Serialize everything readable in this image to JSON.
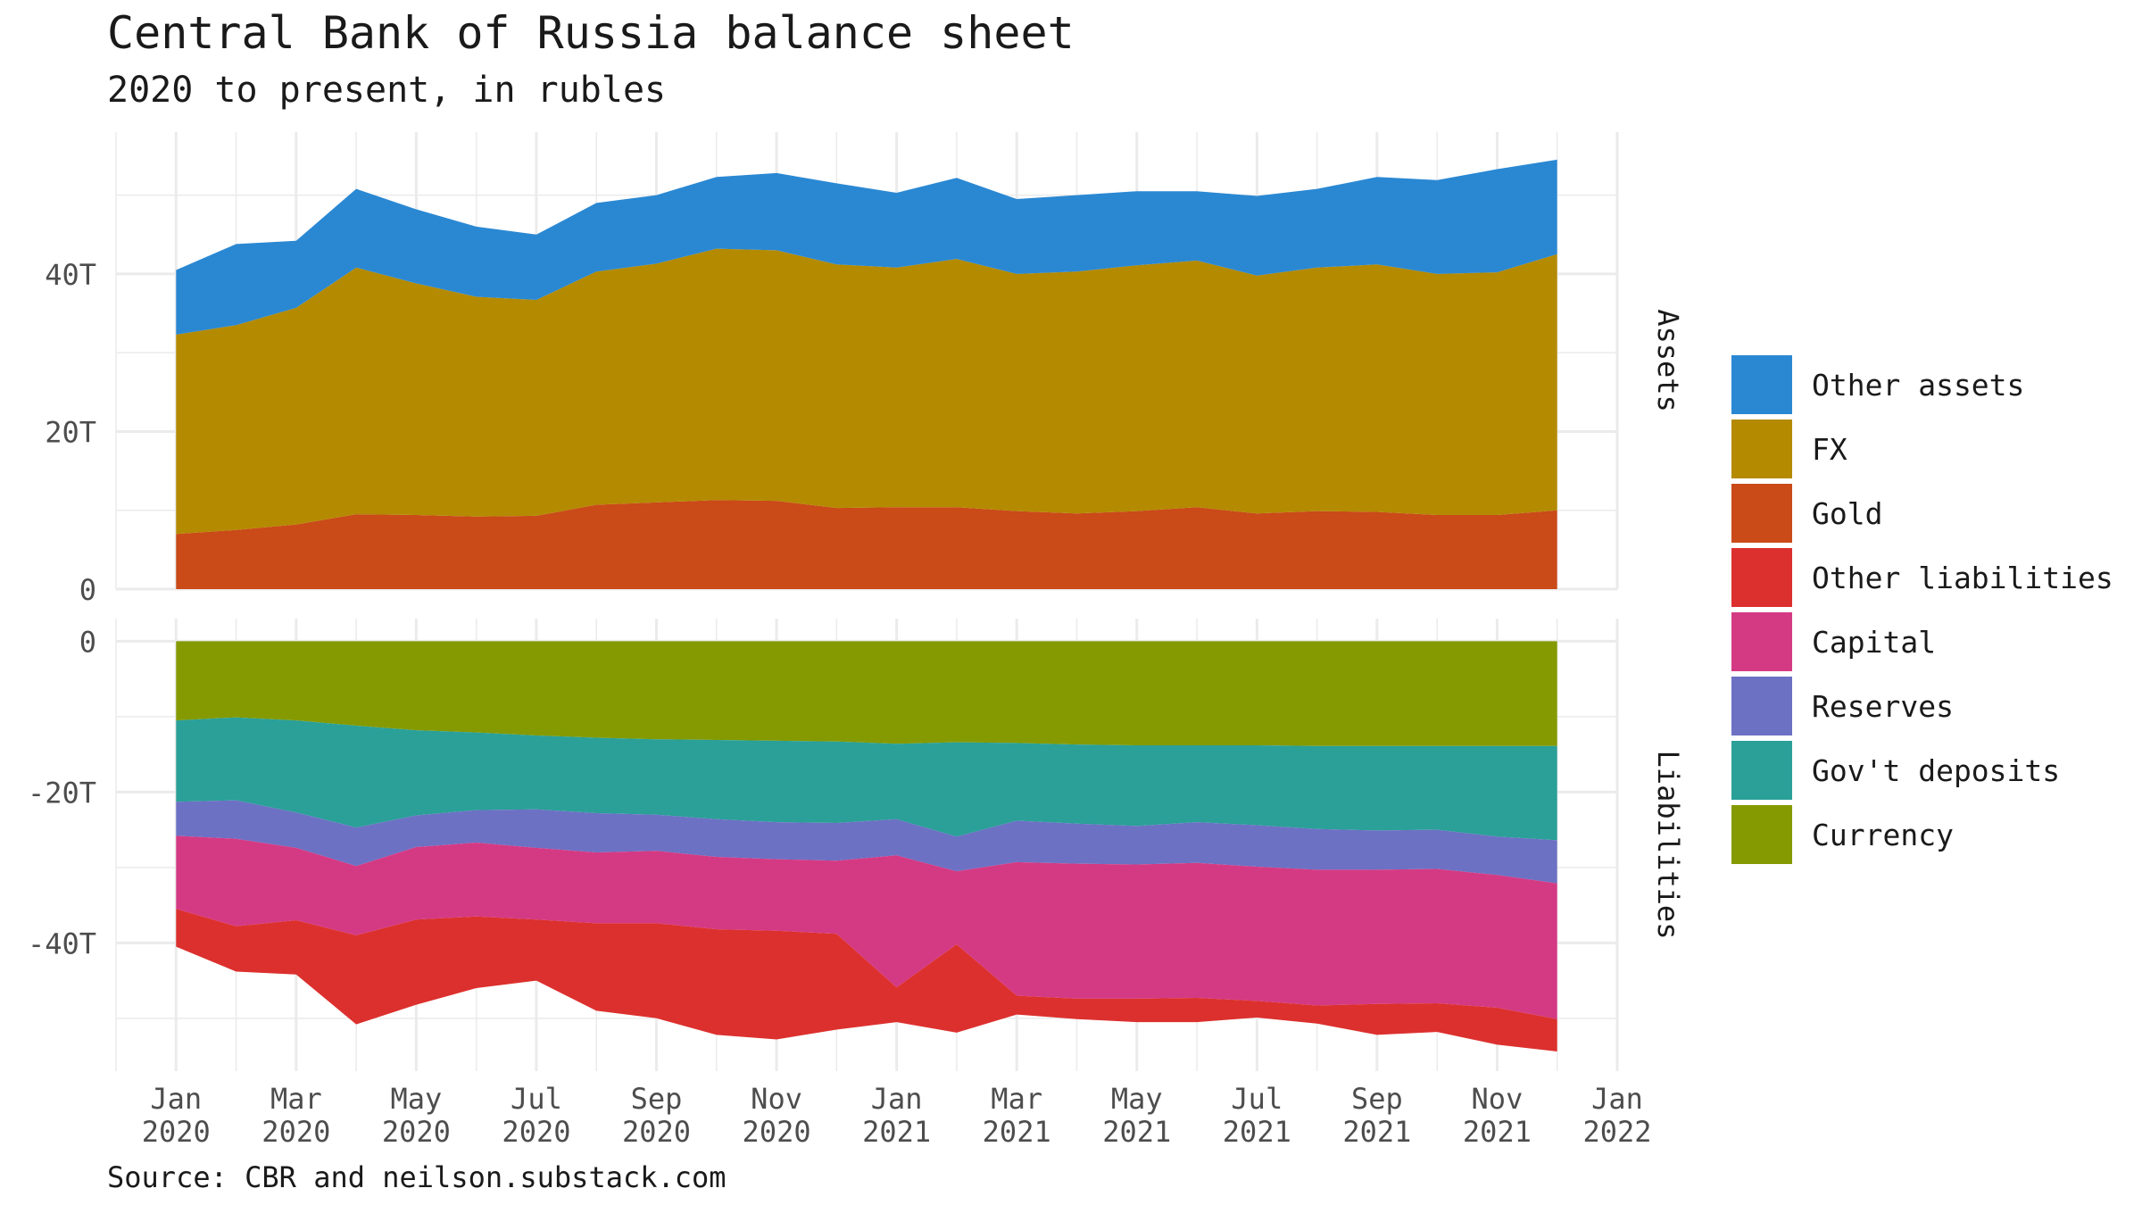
{
  "title": "Central Bank of Russia balance sheet",
  "subtitle": "2020 to present, in rubles",
  "caption": "Source: CBR and neilson.substack.com",
  "legend": [
    {
      "label": "Other assets",
      "color": "#2a88d3"
    },
    {
      "label": "FX",
      "color": "#b48a00"
    },
    {
      "label": "Gold",
      "color": "#ca4a18"
    },
    {
      "label": "Other liabilities",
      "color": "#dc302e"
    },
    {
      "label": "Capital",
      "color": "#d43a84"
    },
    {
      "label": "Reserves",
      "color": "#6c71c4"
    },
    {
      "label": "Gov't deposits",
      "color": "#2aa098"
    },
    {
      "label": "Currency",
      "color": "#859a00"
    }
  ],
  "chart_data": {
    "type": "area",
    "stacked": true,
    "x": [
      "2020-01",
      "2020-02",
      "2020-03",
      "2020-04",
      "2020-05",
      "2020-06",
      "2020-07",
      "2020-08",
      "2020-09",
      "2020-10",
      "2020-11",
      "2020-12",
      "2021-01",
      "2021-02",
      "2021-03",
      "2021-04",
      "2021-05",
      "2021-06",
      "2021-07",
      "2021-08",
      "2021-09",
      "2021-10",
      "2021-11",
      "2021-12"
    ],
    "x_ticks": [
      {
        "x": "2020-01",
        "label": "Jan\n2020"
      },
      {
        "x": "2020-03",
        "label": "Mar\n2020"
      },
      {
        "x": "2020-05",
        "label": "May\n2020"
      },
      {
        "x": "2020-07",
        "label": "Jul\n2020"
      },
      {
        "x": "2020-09",
        "label": "Sep\n2020"
      },
      {
        "x": "2020-11",
        "label": "Nov\n2020"
      },
      {
        "x": "2021-01",
        "label": "Jan\n2021"
      },
      {
        "x": "2021-03",
        "label": "Mar\n2021"
      },
      {
        "x": "2021-05",
        "label": "May\n2021"
      },
      {
        "x": "2021-07",
        "label": "Jul\n2021"
      },
      {
        "x": "2021-09",
        "label": "Sep\n2021"
      },
      {
        "x": "2021-11",
        "label": "Nov\n2021"
      },
      {
        "x": "2022-01",
        "label": "Jan\n2022"
      }
    ],
    "xlim": [
      "2019-12",
      "2022-01"
    ],
    "grid": true,
    "legend_position": "right",
    "facets": [
      {
        "name": "Assets",
        "ylim": [
          0,
          58
        ],
        "yticks": [
          {
            "value": 0,
            "label": "0"
          },
          {
            "value": 20,
            "label": "20T"
          },
          {
            "value": 40,
            "label": "40T"
          }
        ],
        "series": [
          {
            "name": "Gold",
            "color": "#ca4a18",
            "values": [
              7.0,
              7.5,
              8.2,
              9.5,
              9.4,
              9.2,
              9.3,
              10.7,
              11.0,
              11.3,
              11.2,
              10.3,
              10.4,
              10.4,
              9.9,
              9.6,
              9.9,
              10.4,
              9.6,
              9.9,
              9.8,
              9.4,
              9.4,
              10.0
            ]
          },
          {
            "name": "FX",
            "color": "#b48a00",
            "values": [
              25.3,
              26.0,
              27.5,
              31.3,
              29.4,
              27.9,
              27.4,
              29.6,
              30.3,
              31.9,
              31.8,
              30.9,
              30.4,
              31.5,
              30.1,
              30.7,
              31.2,
              31.3,
              30.2,
              30.9,
              31.4,
              30.6,
              30.8,
              32.5
            ]
          },
          {
            "name": "Other assets",
            "color": "#2a88d3",
            "values": [
              8.2,
              10.3,
              8.5,
              10.0,
              9.4,
              8.9,
              8.3,
              8.7,
              8.7,
              9.1,
              9.8,
              10.3,
              9.5,
              10.3,
              9.5,
              9.7,
              9.4,
              8.8,
              10.1,
              10.0,
              11.1,
              11.9,
              13.1,
              12.0
            ]
          }
        ]
      },
      {
        "name": "Liabilities",
        "ylim": [
          -57,
          3
        ],
        "yticks": [
          {
            "value": 0,
            "label": "0"
          },
          {
            "value": -20,
            "label": "-20T"
          },
          {
            "value": -40,
            "label": "-40T"
          }
        ],
        "series": [
          {
            "name": "Currency",
            "color": "#859a00",
            "values": [
              -10.5,
              -10.1,
              -10.5,
              -11.2,
              -11.8,
              -12.1,
              -12.5,
              -12.8,
              -13.0,
              -13.1,
              -13.2,
              -13.3,
              -13.6,
              -13.4,
              -13.5,
              -13.7,
              -13.8,
              -13.8,
              -13.8,
              -13.9,
              -13.9,
              -13.9,
              -13.9,
              -13.9
            ]
          },
          {
            "name": "Gov't deposits",
            "color": "#2aa098",
            "values": [
              -10.8,
              -11.0,
              -12.2,
              -13.5,
              -11.3,
              -10.3,
              -9.8,
              -10.0,
              -10.0,
              -10.5,
              -10.8,
              -10.8,
              -10.0,
              -12.5,
              -10.3,
              -10.5,
              -10.7,
              -10.2,
              -10.6,
              -11.0,
              -11.2,
              -11.1,
              -12.0,
              -12.5
            ]
          },
          {
            "name": "Reserves",
            "color": "#6c71c4",
            "values": [
              -4.5,
              -5.1,
              -4.7,
              -5.1,
              -4.2,
              -4.3,
              -5.1,
              -5.2,
              -4.8,
              -5.0,
              -4.9,
              -5.0,
              -4.8,
              -4.6,
              -5.5,
              -5.3,
              -5.1,
              -5.4,
              -5.5,
              -5.4,
              -5.2,
              -5.2,
              -5.1,
              -5.7
            ]
          },
          {
            "name": "Capital",
            "color": "#d43a84",
            "values": [
              -9.7,
              -11.6,
              -9.6,
              -9.2,
              -9.6,
              -9.8,
              -9.5,
              -9.4,
              -9.6,
              -9.6,
              -9.5,
              -9.7,
              -17.5,
              -9.7,
              -17.7,
              -17.9,
              -17.8,
              -17.9,
              -17.8,
              -18.0,
              -17.8,
              -17.8,
              -17.6,
              -18.0
            ]
          },
          {
            "name": "Other liabilities",
            "color": "#dc302e",
            "values": [
              -5.0,
              -6.0,
              -7.2,
              -11.8,
              -11.3,
              -9.5,
              -8.1,
              -11.6,
              -12.6,
              -14.0,
              -14.4,
              -12.7,
              -4.6,
              -11.7,
              -2.5,
              -2.7,
              -3.1,
              -3.2,
              -2.2,
              -2.4,
              -4.1,
              -3.8,
              -4.9,
              -4.3
            ]
          }
        ]
      }
    ]
  }
}
